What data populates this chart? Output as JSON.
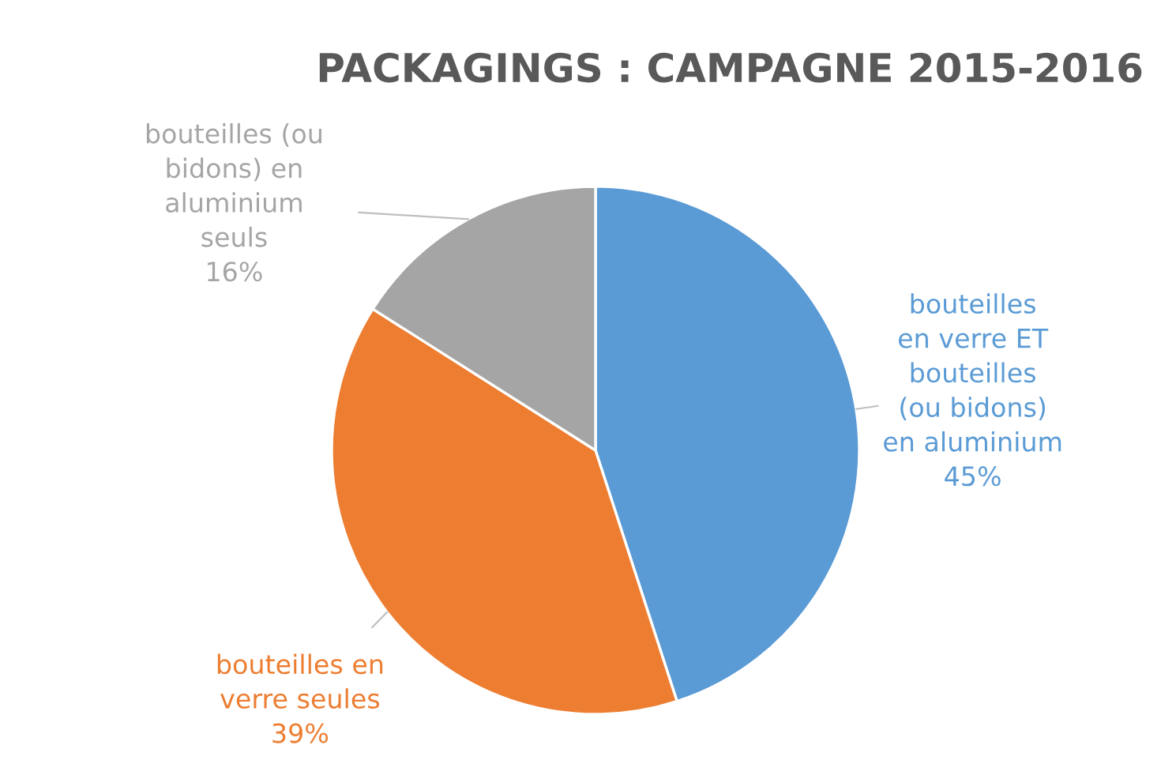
{
  "chart_data": {
    "type": "pie",
    "title": "PACKAGINGS : CAMPAGNE 2015-2016",
    "categories": [
      "bouteilles en verre ET bouteilles (ou bidons) en aluminium",
      "bouteilles en verre seules",
      "bouteilles (ou bidons) en aluminium seuls"
    ],
    "values": [
      45,
      39,
      16
    ],
    "colors": [
      "#5b9bd5",
      "#ed7d31",
      "#a5a5a5"
    ],
    "value_labels": [
      "45%",
      "39%",
      "16%"
    ]
  }
}
